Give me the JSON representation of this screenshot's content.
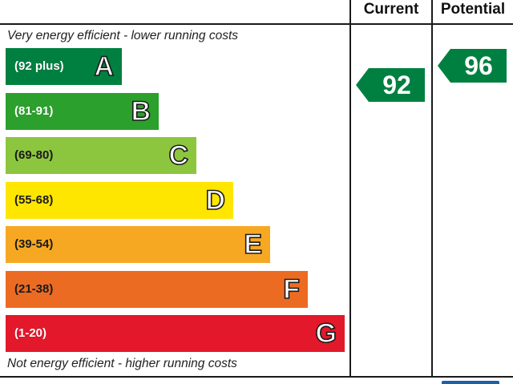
{
  "columns": {
    "current": "Current",
    "potential": "Potential"
  },
  "captions": {
    "top": "Very energy efficient - lower running costs",
    "bottom": "Not energy efficient - higher running costs"
  },
  "chart_data": {
    "type": "bar",
    "title": "",
    "categories": [
      "A",
      "B",
      "C",
      "D",
      "E",
      "F",
      "G"
    ],
    "bands": [
      {
        "letter": "A",
        "range": "(92 plus)",
        "min": 92,
        "max": 100,
        "color": "#008040",
        "text_dark": false
      },
      {
        "letter": "B",
        "range": "(81-91)",
        "min": 81,
        "max": 91,
        "color": "#2ca02c",
        "text_dark": false
      },
      {
        "letter": "C",
        "range": "(69-80)",
        "min": 69,
        "max": 80,
        "color": "#8cc63f",
        "text_dark": true
      },
      {
        "letter": "D",
        "range": "(55-68)",
        "min": 55,
        "max": 68,
        "color": "#ffe600",
        "text_dark": true
      },
      {
        "letter": "E",
        "range": "(39-54)",
        "min": 39,
        "max": 54,
        "color": "#f7a823",
        "text_dark": true
      },
      {
        "letter": "F",
        "range": "(21-38)",
        "min": 21,
        "max": 38,
        "color": "#ec6b23",
        "text_dark": true
      },
      {
        "letter": "G",
        "range": "(1-20)",
        "min": 1,
        "max": 20,
        "color": "#e3182a",
        "text_dark": false
      }
    ],
    "series": [
      {
        "name": "Current",
        "value": 92,
        "band": "A",
        "color": "#008040"
      },
      {
        "name": "Potential",
        "value": 96,
        "band": "A",
        "color": "#008040"
      }
    ]
  }
}
